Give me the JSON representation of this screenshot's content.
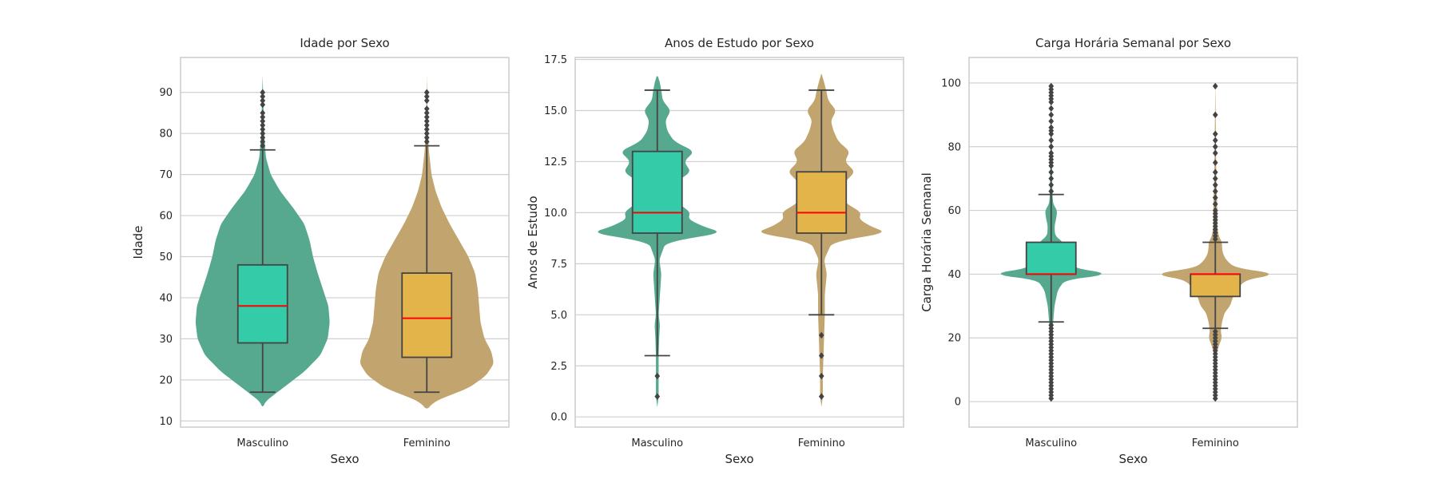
{
  "colors": {
    "male_violin": "#56a98f",
    "female_violin": "#c2a46e",
    "male_box": "#33cba8",
    "female_box": "#e2b44a",
    "median": "#ff0000",
    "box_edge": "#444444",
    "grid": "#cfcfcf",
    "frame": "#cccccc",
    "outlier": "#444444"
  },
  "chart_data": [
    {
      "type": "violin+box",
      "title": "Idade por Sexo",
      "xlabel": "Sexo",
      "ylabel": "Idade",
      "categories": [
        "Masculino",
        "Feminino"
      ],
      "ylim": [
        8.5,
        98.5
      ],
      "yticks": [
        10,
        20,
        30,
        40,
        50,
        60,
        70,
        80,
        90
      ],
      "tick_labels": [
        "10",
        "20",
        "30",
        "40",
        "50",
        "60",
        "70",
        "80",
        "90"
      ],
      "grid": true,
      "boxes": [
        {
          "category": "Masculino",
          "whisker_low": 17,
          "q1": 29,
          "median": 38,
          "q3": 48,
          "whisker_high": 76,
          "outliers": [
            77,
            78,
            79,
            80,
            81,
            82,
            83,
            84,
            85,
            87,
            88,
            89,
            90
          ]
        },
        {
          "category": "Feminino",
          "whisker_low": 17,
          "q1": 25.5,
          "median": 35,
          "q3": 46,
          "whisker_high": 77,
          "outliers": [
            78,
            79,
            80,
            81,
            82,
            83,
            84,
            85,
            86,
            88,
            89,
            90
          ]
        }
      ],
      "violins": [
        {
          "category": "Masculino",
          "range": [
            13.5,
            94
          ],
          "profile": [
            [
              13.5,
              0.0
            ],
            [
              15,
              0.06
            ],
            [
              18,
              0.3
            ],
            [
              22,
              0.62
            ],
            [
              26,
              0.86
            ],
            [
              30,
              0.97
            ],
            [
              34,
              1.0
            ],
            [
              38,
              0.98
            ],
            [
              42,
              0.9
            ],
            [
              46,
              0.82
            ],
            [
              50,
              0.75
            ],
            [
              54,
              0.7
            ],
            [
              58,
              0.62
            ],
            [
              62,
              0.45
            ],
            [
              66,
              0.26
            ],
            [
              70,
              0.12
            ],
            [
              74,
              0.05
            ],
            [
              80,
              0.02
            ],
            [
              88,
              0.01
            ],
            [
              94,
              0.0
            ]
          ]
        },
        {
          "category": "Feminino",
          "range": [
            13,
            94
          ],
          "profile": [
            [
              13,
              0.0
            ],
            [
              15,
              0.15
            ],
            [
              18,
              0.62
            ],
            [
              21,
              0.88
            ],
            [
              24,
              1.0
            ],
            [
              27,
              0.96
            ],
            [
              30,
              0.86
            ],
            [
              34,
              0.8
            ],
            [
              38,
              0.78
            ],
            [
              42,
              0.76
            ],
            [
              46,
              0.72
            ],
            [
              50,
              0.62
            ],
            [
              54,
              0.48
            ],
            [
              58,
              0.34
            ],
            [
              62,
              0.22
            ],
            [
              66,
              0.13
            ],
            [
              70,
              0.07
            ],
            [
              76,
              0.03
            ],
            [
              84,
              0.01
            ],
            [
              94,
              0.0
            ]
          ]
        }
      ]
    },
    {
      "type": "violin+box",
      "title": "Anos de Estudo por Sexo",
      "xlabel": "Sexo",
      "ylabel": "Anos de Estudo",
      "categories": [
        "Masculino",
        "Feminino"
      ],
      "ylim": [
        -0.5,
        17.6
      ],
      "yticks": [
        0,
        2.5,
        5,
        7.5,
        10,
        12.5,
        15,
        17.5
      ],
      "tick_labels": [
        "0.0",
        "2.5",
        "5.0",
        "7.5",
        "10.0",
        "12.5",
        "15.0",
        "17.5"
      ],
      "grid": true,
      "boxes": [
        {
          "category": "Masculino",
          "whisker_low": 3,
          "q1": 9,
          "median": 10,
          "q3": 13,
          "whisker_high": 16,
          "outliers": [
            2,
            1
          ]
        },
        {
          "category": "Feminino",
          "whisker_low": 5,
          "q1": 9,
          "median": 10,
          "q3": 12,
          "whisker_high": 16,
          "outliers": [
            4,
            3,
            2,
            1
          ]
        }
      ],
      "violins": [
        {
          "category": "Masculino",
          "range": [
            0.5,
            16.7
          ],
          "profile": [
            [
              0.5,
              0.0
            ],
            [
              1,
              0.02
            ],
            [
              2,
              0.02
            ],
            [
              3,
              0.02
            ],
            [
              4,
              0.03
            ],
            [
              4.5,
              0.04
            ],
            [
              5,
              0.02
            ],
            [
              6,
              0.04
            ],
            [
              7,
              0.06
            ],
            [
              7.7,
              0.03
            ],
            [
              8.5,
              0.12
            ],
            [
              8.8,
              0.55
            ],
            [
              9,
              1.0
            ],
            [
              9.3,
              0.7
            ],
            [
              9.7,
              0.45
            ],
            [
              10,
              0.5
            ],
            [
              10.5,
              0.3
            ],
            [
              11,
              0.22
            ],
            [
              11.5,
              0.28
            ],
            [
              12,
              0.5
            ],
            [
              12.5,
              0.4
            ],
            [
              13,
              0.55
            ],
            [
              13.5,
              0.25
            ],
            [
              14,
              0.15
            ],
            [
              14.5,
              0.12
            ],
            [
              15,
              0.2
            ],
            [
              15.5,
              0.08
            ],
            [
              16,
              0.06
            ],
            [
              16.5,
              0.03
            ],
            [
              16.7,
              0.0
            ]
          ]
        },
        {
          "category": "Feminino",
          "range": [
            0.5,
            16.8
          ],
          "profile": [
            [
              0.5,
              0.0
            ],
            [
              1,
              0.02
            ],
            [
              2,
              0.02
            ],
            [
              3,
              0.03
            ],
            [
              4,
              0.04
            ],
            [
              5,
              0.05
            ],
            [
              6,
              0.05
            ],
            [
              7,
              0.08
            ],
            [
              7.7,
              0.04
            ],
            [
              8.5,
              0.15
            ],
            [
              8.8,
              0.55
            ],
            [
              9,
              1.0
            ],
            [
              9.3,
              0.75
            ],
            [
              9.7,
              0.55
            ],
            [
              10,
              0.6
            ],
            [
              10.5,
              0.35
            ],
            [
              11,
              0.28
            ],
            [
              11.5,
              0.35
            ],
            [
              12,
              0.5
            ],
            [
              12.5,
              0.35
            ],
            [
              13,
              0.42
            ],
            [
              13.5,
              0.25
            ],
            [
              14,
              0.18
            ],
            [
              14.5,
              0.14
            ],
            [
              15,
              0.22
            ],
            [
              15.5,
              0.1
            ],
            [
              16,
              0.07
            ],
            [
              16.5,
              0.03
            ],
            [
              16.8,
              0.0
            ]
          ]
        }
      ]
    },
    {
      "type": "violin+box",
      "title": "Carga Horária Semanal por Sexo",
      "xlabel": "Sexo",
      "ylabel": "Carga Horária Semanal",
      "categories": [
        "Masculino",
        "Feminino"
      ],
      "ylim": [
        -8,
        108
      ],
      "yticks": [
        0,
        20,
        40,
        60,
        80,
        100
      ],
      "tick_labels": [
        "0",
        "20",
        "40",
        "60",
        "80",
        "100"
      ],
      "grid": true,
      "boxes": [
        {
          "category": "Masculino",
          "whisker_low": 25,
          "q1": 40,
          "median": 40,
          "q3": 50,
          "whisker_high": 65,
          "outliers": [
            1,
            2,
            3,
            4,
            5,
            6,
            7,
            8,
            9,
            10,
            11,
            12,
            13,
            14,
            15,
            16,
            17,
            18,
            19,
            20,
            21,
            22,
            23,
            24,
            66,
            68,
            70,
            72,
            74,
            75,
            76,
            77,
            78,
            80,
            82,
            84,
            85,
            86,
            88,
            90,
            92,
            94,
            95,
            96,
            97,
            98,
            99
          ]
        },
        {
          "category": "Feminino",
          "whisker_low": 23,
          "q1": 33,
          "median": 40,
          "q3": 40,
          "whisker_high": 50,
          "outliers": [
            1,
            2,
            3,
            4,
            5,
            6,
            7,
            8,
            9,
            10,
            11,
            12,
            13,
            14,
            15,
            16,
            17,
            18,
            19,
            20,
            21,
            22,
            51,
            52,
            53,
            54,
            55,
            56,
            57,
            58,
            59,
            60,
            62,
            64,
            66,
            68,
            70,
            72,
            75,
            78,
            80,
            82,
            84,
            90,
            99
          ]
        }
      ],
      "violins": [
        {
          "category": "Masculino",
          "range": [
            0,
            100
          ],
          "profile": [
            [
              0,
              0.0
            ],
            [
              5,
              0.005
            ],
            [
              10,
              0.01
            ],
            [
              15,
              0.01
            ],
            [
              20,
              0.015
            ],
            [
              25,
              0.03
            ],
            [
              30,
              0.05
            ],
            [
              35,
              0.1
            ],
            [
              38,
              0.2
            ],
            [
              39,
              0.45
            ],
            [
              40,
              1.0
            ],
            [
              41,
              0.55
            ],
            [
              42,
              0.35
            ],
            [
              44,
              0.25
            ],
            [
              46,
              0.22
            ],
            [
              48,
              0.2
            ],
            [
              50,
              0.18
            ],
            [
              52,
              0.06
            ],
            [
              55,
              0.05
            ],
            [
              58,
              0.08
            ],
            [
              60,
              0.09
            ],
            [
              62,
              0.03
            ],
            [
              65,
              0.02
            ],
            [
              70,
              0.015
            ],
            [
              80,
              0.01
            ],
            [
              90,
              0.005
            ],
            [
              100,
              0.0
            ]
          ]
        },
        {
          "category": "Feminino",
          "range": [
            0,
            100
          ],
          "profile": [
            [
              0,
              0.0
            ],
            [
              5,
              0.005
            ],
            [
              10,
              0.01
            ],
            [
              15,
              0.02
            ],
            [
              18,
              0.06
            ],
            [
              20,
              0.1
            ],
            [
              22,
              0.08
            ],
            [
              25,
              0.1
            ],
            [
              28,
              0.14
            ],
            [
              30,
              0.22
            ],
            [
              32,
              0.25
            ],
            [
              35,
              0.3
            ],
            [
              38,
              0.45
            ],
            [
              39,
              0.6
            ],
            [
              40,
              1.0
            ],
            [
              41,
              0.6
            ],
            [
              42,
              0.3
            ],
            [
              44,
              0.18
            ],
            [
              46,
              0.12
            ],
            [
              48,
              0.1
            ],
            [
              50,
              0.1
            ],
            [
              52,
              0.05
            ],
            [
              55,
              0.03
            ],
            [
              60,
              0.03
            ],
            [
              70,
              0.015
            ],
            [
              80,
              0.01
            ],
            [
              90,
              0.005
            ],
            [
              100,
              0.0
            ]
          ]
        }
      ]
    }
  ]
}
